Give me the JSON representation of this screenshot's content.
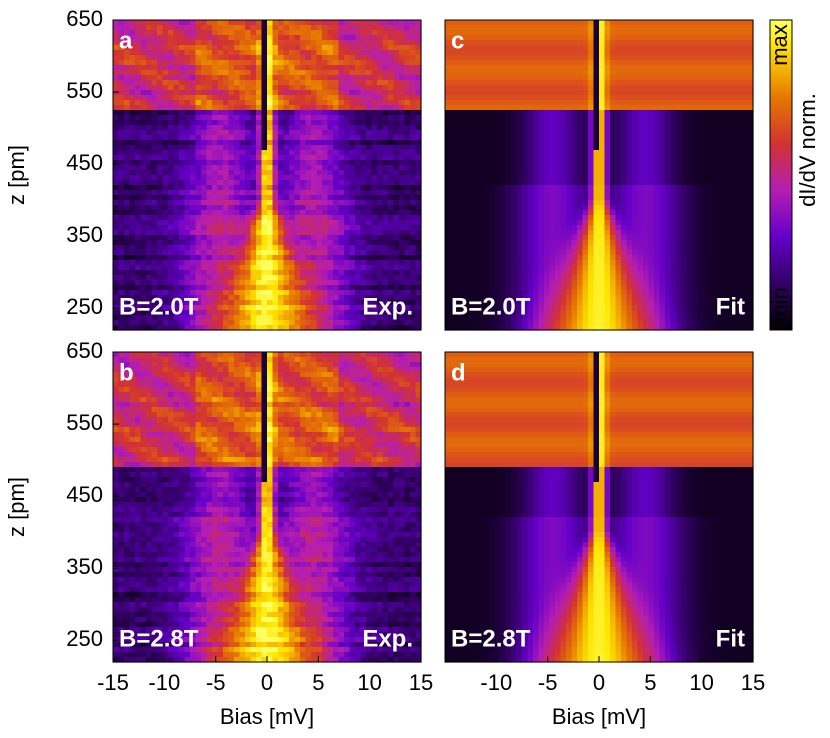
{
  "chart_data": [
    {
      "type": "heatmap",
      "panel_label": "a",
      "field_label": "B=2.0T",
      "kind_label": "Exp.",
      "ylabel": "z [pm]",
      "xlim": [
        -15,
        15
      ],
      "ylim": [
        220,
        650
      ],
      "yticks": [
        250,
        350,
        450,
        550,
        650
      ]
    },
    {
      "type": "heatmap",
      "panel_label": "b",
      "field_label": "B=2.8T",
      "kind_label": "Exp.",
      "xlabel": "Bias [mV]",
      "ylabel": "z [pm]",
      "xlim": [
        -15,
        15
      ],
      "ylim": [
        220,
        650
      ],
      "xticks": [
        -15,
        -10,
        -5,
        0,
        5,
        10,
        15
      ],
      "yticks": [
        250,
        350,
        450,
        550,
        650
      ]
    },
    {
      "type": "heatmap",
      "panel_label": "c",
      "field_label": "B=2.0T",
      "kind_label": "Fit",
      "xlim": [
        -15,
        15
      ],
      "ylim": [
        220,
        650
      ],
      "colorbar": {
        "label": "dI/dV norm.",
        "max_label": "max",
        "min_label": "min"
      }
    },
    {
      "type": "heatmap",
      "panel_label": "d",
      "field_label": "B=2.8T",
      "kind_label": "Fit",
      "xlabel": "Bias [mV]",
      "xlim": [
        -15,
        15
      ],
      "ylim": [
        220,
        650
      ],
      "xticks": [
        -10,
        -5,
        0,
        5,
        10,
        15
      ]
    }
  ]
}
